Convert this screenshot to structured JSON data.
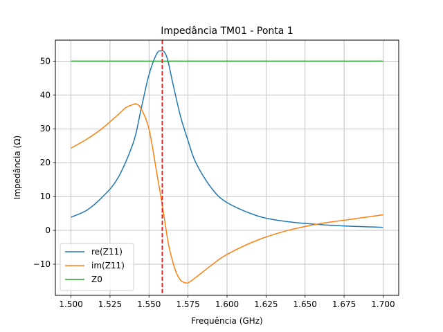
{
  "chart_data": {
    "type": "line",
    "title": "Impedância TM01 - Ponta 1",
    "xlabel": "Frequência (GHz)",
    "ylabel": "Impedância (Ω)",
    "xlim": [
      1.49,
      1.71
    ],
    "ylim": [
      -19.2,
      56.2
    ],
    "xticks": [
      1.5,
      1.525,
      1.55,
      1.575,
      1.6,
      1.625,
      1.65,
      1.675,
      1.7
    ],
    "xtick_labels": [
      "1.500",
      "1.525",
      "1.550",
      "1.575",
      "1.600",
      "1.625",
      "1.650",
      "1.675",
      "1.700"
    ],
    "yticks": [
      -10,
      0,
      10,
      20,
      30,
      40,
      50
    ],
    "ytick_labels": [
      "−10",
      "0",
      "10",
      "20",
      "30",
      "40",
      "50"
    ],
    "grid": true,
    "legend_position": "lower-left",
    "series": [
      {
        "name": "re(Z11)",
        "color": "#1f77b4",
        "x": [
          1.5,
          1.51,
          1.52,
          1.53,
          1.54,
          1.545,
          1.55,
          1.555,
          1.558,
          1.56,
          1.562,
          1.565,
          1.57,
          1.575,
          1.58,
          1.59,
          1.6,
          1.62,
          1.64,
          1.66,
          1.68,
          1.7
        ],
        "y": [
          3.9,
          5.9,
          9.8,
          15.4,
          26.0,
          36.0,
          46.0,
          52.2,
          53.0,
          52.6,
          50.3,
          44.0,
          34.0,
          26.5,
          20.0,
          12.5,
          8.2,
          4.2,
          2.5,
          1.7,
          1.2,
          0.9
        ]
      },
      {
        "name": "im(Z11)",
        "color": "#ff7f0e",
        "x": [
          1.5,
          1.51,
          1.52,
          1.53,
          1.535,
          1.54,
          1.542,
          1.545,
          1.55,
          1.555,
          1.558,
          1.56,
          1.563,
          1.567,
          1.57,
          1.572,
          1.575,
          1.58,
          1.59,
          1.6,
          1.62,
          1.64,
          1.66,
          1.68,
          1.7
        ],
        "y": [
          24.3,
          26.9,
          30.1,
          34.1,
          36.2,
          37.2,
          37.3,
          35.9,
          29.9,
          16.9,
          8.9,
          3.0,
          -5.3,
          -11.9,
          -14.6,
          -15.3,
          -15.5,
          -13.9,
          -10.3,
          -7.1,
          -2.8,
          0.1,
          2.0,
          3.3,
          4.6
        ]
      },
      {
        "name": "Z0",
        "color": "#2ca02c",
        "x": [
          1.5,
          1.7
        ],
        "y": [
          50,
          50
        ]
      }
    ],
    "vline": {
      "x": 1.5585,
      "color": "#e31a1c",
      "style": "dashed"
    }
  }
}
